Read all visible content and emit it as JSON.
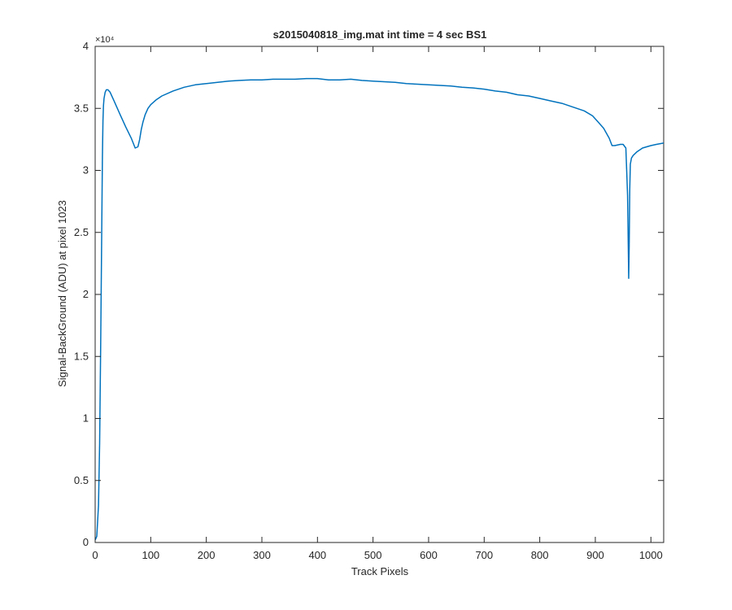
{
  "chart_data": {
    "type": "line",
    "title": "s2015040818_img.mat int time = 4 sec   BS1",
    "xlabel": "Track Pixels",
    "ylabel": "Signal-BackGround (ADU) at pixel 1023",
    "xlim": [
      0,
      1023
    ],
    "ylim": [
      0,
      40000
    ],
    "y_exponent_label": "×10⁴",
    "x_ticks": [
      0,
      100,
      200,
      300,
      400,
      500,
      600,
      700,
      800,
      900,
      1000
    ],
    "x_tick_labels": [
      "0",
      "100",
      "200",
      "300",
      "400",
      "500",
      "600",
      "700",
      "800",
      "900",
      "1000"
    ],
    "y_ticks": [
      0,
      5000,
      10000,
      15000,
      20000,
      25000,
      30000,
      35000,
      40000
    ],
    "y_tick_labels": [
      "0",
      "0.5",
      "1",
      "1.5",
      "2",
      "2.5",
      "3",
      "3.5",
      "4"
    ],
    "grid": false,
    "line_color": "#0072BD",
    "series": [
      {
        "x": [
          0,
          3,
          6,
          8,
          10,
          12,
          13,
          14,
          15,
          16,
          18,
          20,
          23,
          27,
          35,
          45,
          55,
          65,
          72,
          77,
          80,
          83,
          86,
          90,
          95,
          100,
          110,
          120,
          140,
          160,
          180,
          200,
          220,
          240,
          260,
          280,
          300,
          320,
          340,
          360,
          380,
          400,
          420,
          440,
          460,
          480,
          500,
          520,
          540,
          560,
          580,
          600,
          620,
          640,
          660,
          680,
          700,
          720,
          740,
          760,
          780,
          800,
          820,
          840,
          860,
          880,
          895,
          905,
          915,
          925,
          930,
          935,
          945,
          950,
          955,
          958,
          960,
          961,
          962,
          963,
          965,
          968,
          975,
          985,
          1000,
          1010,
          1023
        ],
        "y": [
          200,
          500,
          3000,
          8000,
          16000,
          26000,
          31000,
          34000,
          35200,
          35800,
          36300,
          36500,
          36500,
          36300,
          35500,
          34500,
          33500,
          32600,
          31800,
          31900,
          32500,
          33300,
          33900,
          34500,
          35000,
          35300,
          35700,
          36000,
          36400,
          36700,
          36900,
          37000,
          37100,
          37200,
          37250,
          37300,
          37300,
          37350,
          37350,
          37350,
          37400,
          37400,
          37300,
          37300,
          37350,
          37250,
          37200,
          37150,
          37100,
          37000,
          36950,
          36900,
          36850,
          36800,
          36700,
          36650,
          36550,
          36400,
          36300,
          36100,
          36000,
          35800,
          35600,
          35400,
          35100,
          34800,
          34400,
          33900,
          33400,
          32600,
          32000,
          32000,
          32100,
          32100,
          31800,
          28000,
          21300,
          24000,
          28500,
          30500,
          31000,
          31200,
          31500,
          31800,
          32000,
          32100,
          32200
        ]
      }
    ]
  }
}
